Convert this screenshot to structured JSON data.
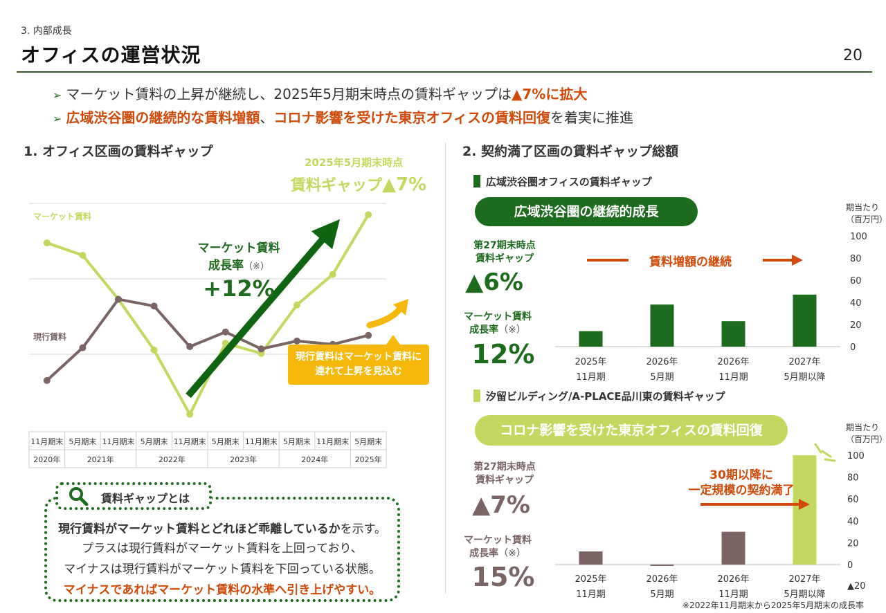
{
  "header": {
    "section": "3. 内部成長",
    "title": "オフィスの運営状況",
    "page_number": "20"
  },
  "bullets": [
    {
      "pre": "マーケット賃料の上昇が継続し、2025年5月期末時点の賃料ギャップは",
      "emph": "▲7%に拡大",
      "post": ""
    },
    {
      "pre": "",
      "emph": "広域渋谷圏の継続的な賃料増額",
      "mid": "、",
      "emph2": "コロナ影響を受けた東京オフィスの賃料回復",
      "post": "を着実に推進"
    }
  ],
  "colors": {
    "dark_green": "#1d6b1d",
    "light_green": "#c3d85f",
    "gray_brown": "#7a6464",
    "orange": "#d04a0a",
    "yellow": "#f6b80a"
  },
  "left": {
    "heading": "1. オフィス区画の賃料ギャップ",
    "top_note": "2025年5月期末時点",
    "top_value_label": "賃料ギャップ",
    "top_value": "▲7%",
    "market_growth_label1": "マーケット賃料",
    "market_growth_label2": "成長率",
    "market_growth_note": "（※）",
    "market_growth_value": "+12%",
    "yellow_box_line1": "現行賃料はマーケット賃料に",
    "yellow_box_line2": "連れて上昇を見込む",
    "callout_title": "賃料ギャップとは",
    "callout_line1_bold": "現行賃料がマーケット賃料とどれほど乖離しているか",
    "callout_line1_rest": "を示す。",
    "callout_line2": "プラスは現行賃料がマーケット賃料を上回っており、",
    "callout_line3": "マイナスは現行賃料がマーケット賃料を下回っている状態。",
    "callout_line4": "マイナスであればマーケット賃料の水準へ引き上げやすい。"
  },
  "right": {
    "heading": "2. 契約満了区画の賃料ギャップ総額",
    "sub1": "広域渋谷圏オフィスの賃料ギャップ",
    "pill1": "広域渋谷圏の継続的成長",
    "stat1_label1": "第27期末時点",
    "stat1_label2": "賃料ギャップ",
    "stat1_value": "▲6%",
    "stat1_growth1": "マーケット賃料",
    "stat1_growth2": "成長率",
    "stat1_growth_note": "（※）",
    "stat1_growth_value": "12%",
    "arrow_text1": "賃料増額の継続",
    "unit1": "期当たり",
    "unit2": "（百万円）",
    "sub2": "汐留ビルディング/A-PLACE品川東の賃料ギャップ",
    "pill2": "コロナ影響を受けた東京オフィスの賃料回復",
    "stat2_label1": "第27期末時点",
    "stat2_label2": "賃料ギャップ",
    "stat2_value": "▲7%",
    "stat2_growth1": "マーケット賃料",
    "stat2_growth2": "成長率",
    "stat2_growth_note": "（※）",
    "stat2_growth_value": "15%",
    "annotation1": "30期以降に",
    "annotation2": "一定規模の契約満了",
    "extra_tick": "▲20",
    "footnote": "※2022年11月期末から2025年5月期末の成長率"
  },
  "chart_data": [
    {
      "type": "line",
      "title": "",
      "x": [
        "11月期末",
        "5月期末",
        "11月期末",
        "5月期末",
        "11月期末",
        "5月期末",
        "11月期末",
        "5月期末",
        "11月期末",
        "5月期末"
      ],
      "year_labels": [
        {
          "label": "2020年",
          "span": 1
        },
        {
          "label": "2021年",
          "span": 2
        },
        {
          "label": "2022年",
          "span": 2
        },
        {
          "label": "2023年",
          "span": 2
        },
        {
          "label": "2024年",
          "span": 2
        },
        {
          "label": "2025年",
          "span": 1
        }
      ],
      "series": [
        {
          "name": "マーケット賃料",
          "color": "#c3d85f",
          "values": [
            95,
            84,
            45,
            0,
            -57,
            6,
            -3,
            40,
            67,
            120
          ]
        },
        {
          "name": "現行賃料",
          "color": "#7a6464",
          "values": [
            -27,
            2,
            45,
            39,
            3,
            16,
            1,
            8,
            5,
            13
          ]
        }
      ],
      "grid": true,
      "ylim": [
        -70,
        130
      ]
    },
    {
      "type": "bar",
      "title": "広域渋谷圏オフィスの賃料ギャップ",
      "categories": [
        "2025年\n11月期",
        "2026年\n5月期",
        "2026年\n11月期",
        "2027年\n5月期以降"
      ],
      "values": [
        14,
        38,
        23,
        47
      ],
      "ylim": [
        0,
        100
      ],
      "yticks": [
        0,
        20,
        40,
        60,
        80,
        100
      ],
      "color": "#1d6b1d"
    },
    {
      "type": "bar",
      "title": "汐留ビルディング/A-PLACE品川東の賃料ギャップ",
      "categories": [
        "2025年\n11月期",
        "2026年\n5月期",
        "2026年\n11月期",
        "2027年\n5月期以降"
      ],
      "values": [
        12,
        -1,
        30,
        100
      ],
      "colors": [
        "#7a6464",
        "#7a6464",
        "#7a6464",
        "#c3d85f"
      ],
      "ylim": [
        -20,
        100
      ],
      "yticks": [
        0,
        20,
        40,
        60,
        80,
        100
      ]
    }
  ]
}
